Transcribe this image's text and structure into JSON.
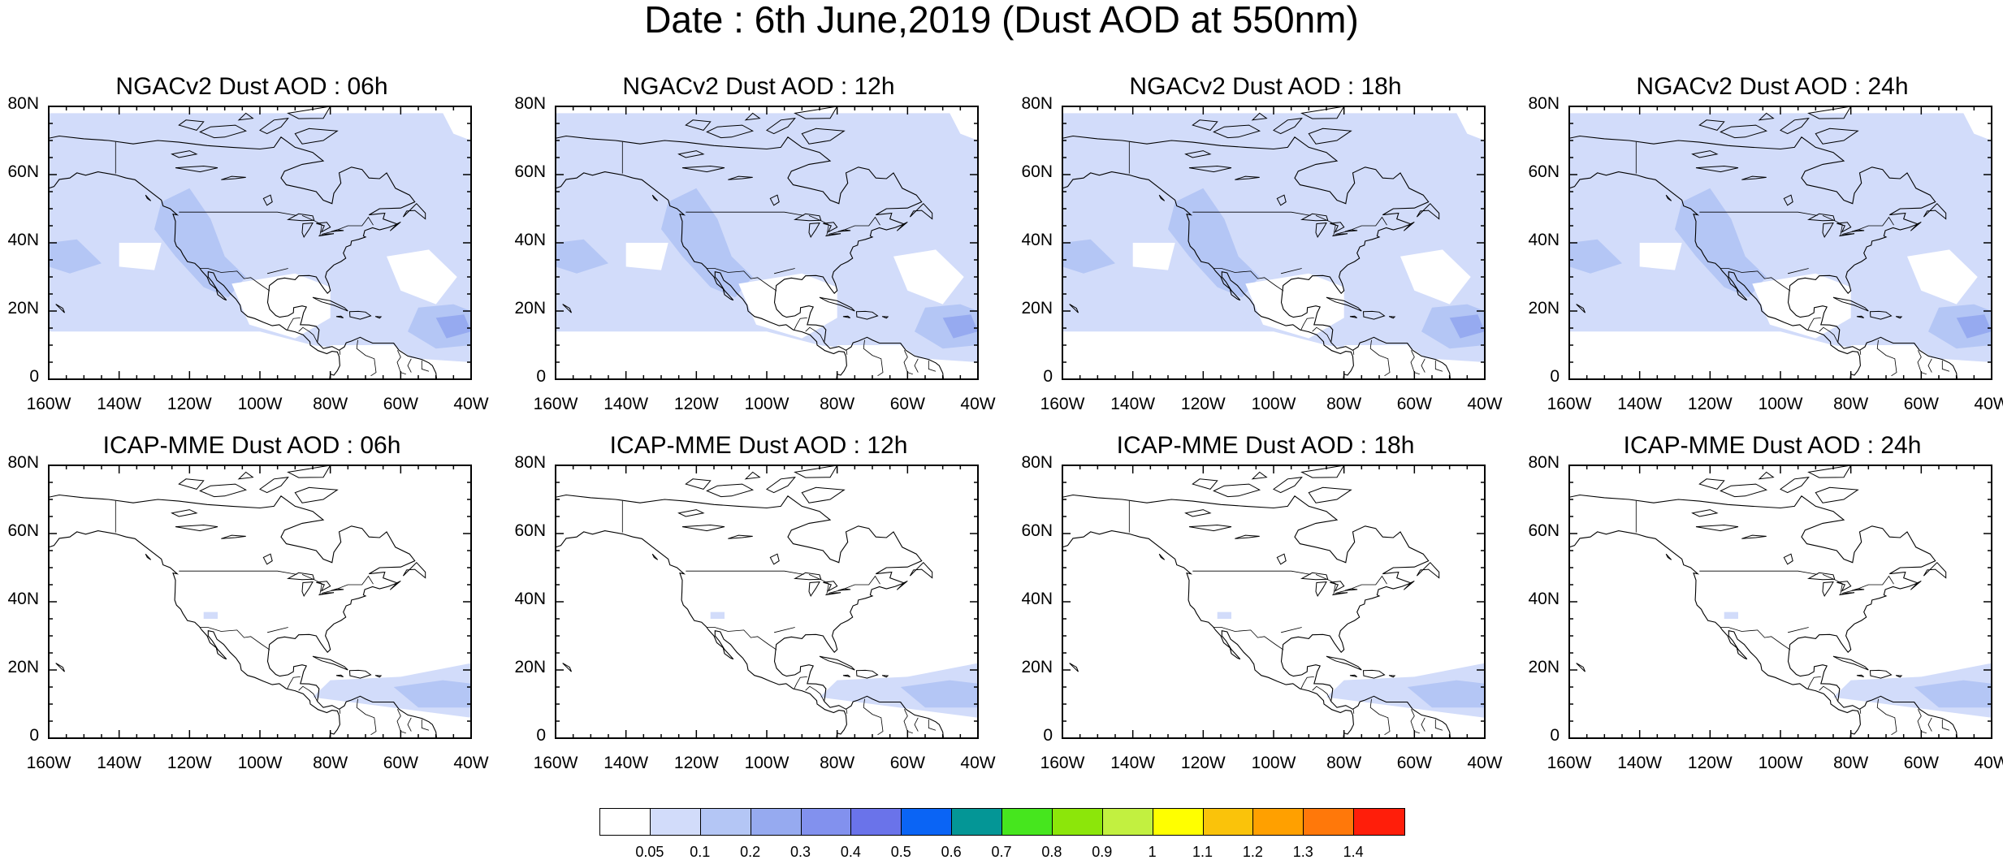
{
  "figure_title": "Date : 6th June,2019 (Dust AOD at 550nm)",
  "lat_labels": [
    "80N",
    "60N",
    "40N",
    "20N",
    "0"
  ],
  "lon_labels": [
    "160W",
    "140W",
    "120W",
    "100W",
    "80W",
    "60W",
    "40W"
  ],
  "panels": [
    {
      "title": "NGACv2 Dust AOD : 06h",
      "model": "ngac"
    },
    {
      "title": "NGACv2 Dust AOD : 12h",
      "model": "ngac"
    },
    {
      "title": "NGACv2 Dust AOD : 18h",
      "model": "ngac"
    },
    {
      "title": "NGACv2 Dust AOD : 24h",
      "model": "ngac"
    },
    {
      "title": "ICAP-MME Dust AOD : 06h",
      "model": "icap"
    },
    {
      "title": "ICAP-MME Dust AOD : 12h",
      "model": "icap"
    },
    {
      "title": "ICAP-MME Dust AOD : 18h",
      "model": "icap"
    },
    {
      "title": "ICAP-MME Dust AOD : 24h",
      "model": "icap"
    }
  ],
  "colorbar": {
    "labels": [
      "0.05",
      "0.1",
      "0.2",
      "0.3",
      "0.4",
      "0.5",
      "0.6",
      "0.7",
      "0.8",
      "0.9",
      "1",
      "1.1",
      "1.2",
      "1.3",
      "1.4"
    ],
    "colors": [
      "#ffffff",
      "#d2dcfa",
      "#b4c6f5",
      "#96aaf0",
      "#8291ee",
      "#6a73ea",
      "#0a64f5",
      "#049696",
      "#46e61e",
      "#8ce60a",
      "#c2f040",
      "#ffff00",
      "#fac30a",
      "#ffa000",
      "#ff780a",
      "#ff1e0a"
    ]
  }
}
